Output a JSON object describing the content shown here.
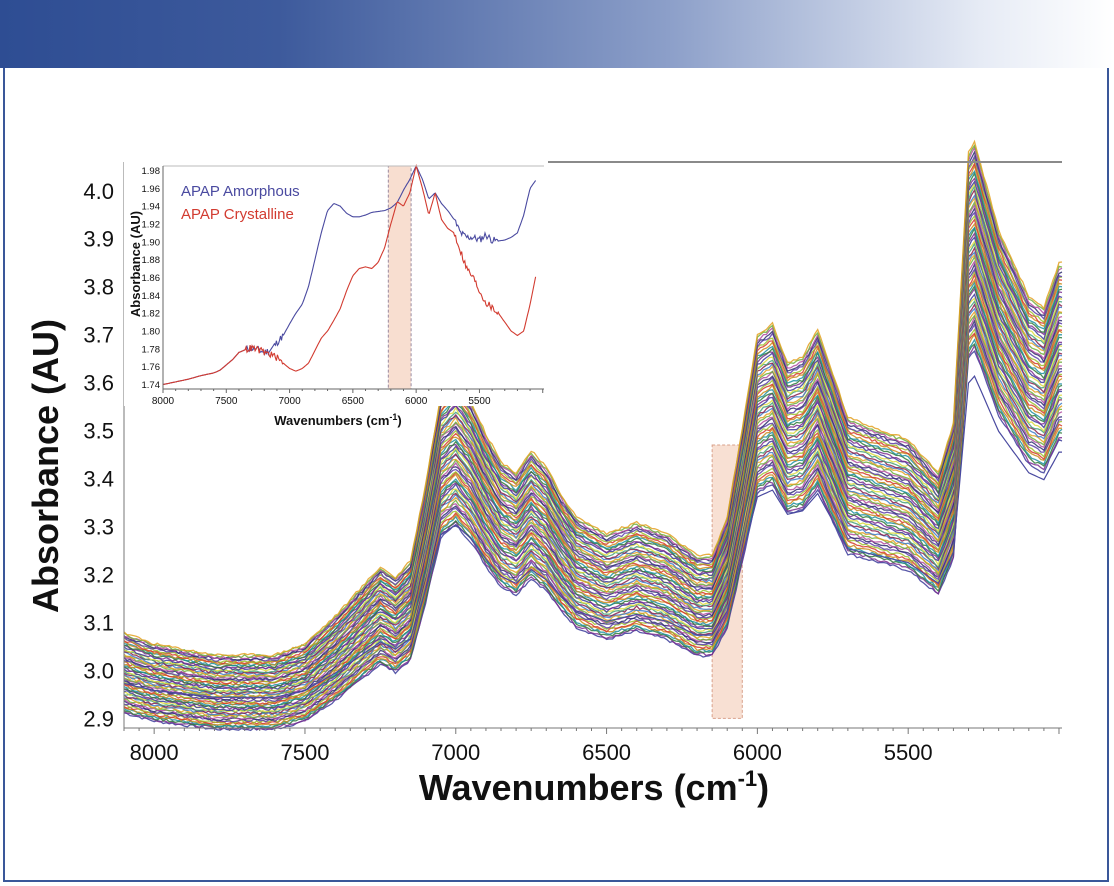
{
  "chart_data": [
    {
      "id": "main",
      "type": "line",
      "description_kind": "overlaid NIR spectra (many series)",
      "xlabel": "Wavenumbers (cm",
      "xlabel_sup": "-1",
      "xlabel_close": ")",
      "ylabel": "Absorbance (AU)",
      "xlim": [
        8100,
        4990
      ],
      "ylim": [
        2.88,
        4.06
      ],
      "x_ticks": [
        8000,
        7500,
        7000,
        6500,
        6000,
        5500
      ],
      "x_tick_labels": [
        "8000",
        "7500",
        "7000",
        "6500",
        "6000",
        "5500"
      ],
      "y_ticks": [
        2.9,
        3.0,
        3.1,
        3.2,
        3.3,
        3.4,
        3.5,
        3.6,
        3.7,
        3.8,
        3.9,
        4.0
      ],
      "y_tick_labels": [
        "2.9",
        "3.0",
        "3.1",
        "3.2",
        "3.3",
        "3.4",
        "3.5",
        "3.6",
        "3.7",
        "3.8",
        "3.9",
        "4.0"
      ],
      "highlight_region": {
        "x": [
          6150,
          6050
        ],
        "y": [
          2.9,
          3.47
        ]
      },
      "reference_spectrum": {
        "x": [
          8100,
          8000,
          7800,
          7600,
          7500,
          7400,
          7300,
          7250,
          7200,
          7150,
          7100,
          7050,
          7000,
          6950,
          6900,
          6850,
          6800,
          6750,
          6700,
          6650,
          6600,
          6500,
          6400,
          6300,
          6200,
          6150,
          6100,
          6050,
          6000,
          5950,
          5900,
          5850,
          5800,
          5750,
          5700,
          5600,
          5500,
          5450,
          5400,
          5350,
          5300,
          5280,
          5250,
          5200,
          5150,
          5100,
          5050,
          5000
        ],
        "y": [
          2.99,
          2.97,
          2.95,
          2.95,
          2.97,
          3.02,
          3.08,
          3.11,
          3.09,
          3.12,
          3.26,
          3.42,
          3.45,
          3.41,
          3.35,
          3.3,
          3.28,
          3.32,
          3.29,
          3.24,
          3.2,
          3.17,
          3.19,
          3.17,
          3.13,
          3.13,
          3.2,
          3.36,
          3.53,
          3.55,
          3.48,
          3.49,
          3.54,
          3.46,
          3.38,
          3.36,
          3.34,
          3.31,
          3.28,
          3.37,
          3.86,
          3.88,
          3.82,
          3.72,
          3.66,
          3.6,
          3.58,
          3.66
        ]
      },
      "series_count": 60,
      "series_spread": [
        -0.08,
        0.09
      ],
      "series_colors": [
        "#3b3b9a",
        "#7a2b8f",
        "#2f7a3a",
        "#1c8fa0",
        "#c98a1a",
        "#d63a2a",
        "#9bbf2a",
        "#5a3ca8",
        "#2e2e6e",
        "#b04aa0",
        "#6fae3a",
        "#e3a020",
        "#3e7cc8",
        "#8a1f4a",
        "#44a07a",
        "#dcdc3c"
      ]
    },
    {
      "id": "inset",
      "type": "line",
      "xlabel": "Wavenumbers (cm",
      "xlabel_sup": "-1",
      "xlabel_close": ")",
      "ylabel": "Absorbance (AU)",
      "xlim": [
        8000,
        4990
      ],
      "ylim": [
        1.735,
        1.985
      ],
      "x_ticks": [
        8000,
        7500,
        7000,
        6500,
        6000,
        5500
      ],
      "x_tick_labels": [
        "8000",
        "7500",
        "7000",
        "6500",
        "6000",
        "5500"
      ],
      "y_ticks": [
        1.74,
        1.76,
        1.78,
        1.8,
        1.82,
        1.84,
        1.86,
        1.88,
        1.9,
        1.92,
        1.94,
        1.96,
        1.98
      ],
      "y_tick_labels": [
        "1.74",
        "1.76",
        "1.78",
        "1.80",
        "1.82",
        "1.84",
        "1.86",
        "1.88",
        "1.90",
        "1.92",
        "1.94",
        "1.96",
        "1.98"
      ],
      "highlight_region": {
        "x": [
          6220,
          6040
        ],
        "y": [
          1.735,
          1.985
        ]
      },
      "series": [
        {
          "name": "APAP Amorphous",
          "color": "#4a4aa0",
          "x": [
            8000,
            7900,
            7800,
            7700,
            7600,
            7550,
            7500,
            7450,
            7400,
            7350,
            7300,
            7250,
            7200,
            7150,
            7100,
            7050,
            7000,
            6950,
            6900,
            6850,
            6800,
            6750,
            6700,
            6650,
            6600,
            6550,
            6500,
            6450,
            6400,
            6350,
            6300,
            6250,
            6200,
            6150,
            6100,
            6050,
            6000,
            5950,
            5900,
            5850,
            5800,
            5750,
            5700,
            5650,
            5600,
            5550,
            5500,
            5450,
            5400,
            5350,
            5300,
            5250,
            5200,
            5150,
            5100,
            5050
          ],
          "y": [
            1.74,
            1.743,
            1.746,
            1.75,
            1.753,
            1.756,
            1.762,
            1.768,
            1.776,
            1.779,
            1.781,
            1.779,
            1.776,
            1.779,
            1.787,
            1.795,
            1.808,
            1.82,
            1.83,
            1.85,
            1.88,
            1.91,
            1.935,
            1.943,
            1.94,
            1.932,
            1.928,
            1.928,
            1.93,
            1.933,
            1.934,
            1.935,
            1.938,
            1.944,
            1.958,
            1.97,
            1.985,
            1.97,
            1.948,
            1.955,
            1.943,
            1.935,
            1.925,
            1.91,
            1.905,
            1.905,
            1.902,
            1.908,
            1.902,
            1.901,
            1.902,
            1.905,
            1.91,
            1.93,
            1.96,
            1.97
          ]
        },
        {
          "name": "APAP Crystalline",
          "color": "#d23b30",
          "x": [
            8000,
            7900,
            7800,
            7700,
            7600,
            7550,
            7500,
            7450,
            7400,
            7350,
            7300,
            7250,
            7200,
            7150,
            7100,
            7050,
            7000,
            6950,
            6900,
            6850,
            6800,
            6750,
            6700,
            6650,
            6600,
            6550,
            6500,
            6450,
            6400,
            6350,
            6300,
            6250,
            6200,
            6150,
            6100,
            6050,
            6000,
            5950,
            5900,
            5850,
            5800,
            5750,
            5700,
            5650,
            5600,
            5550,
            5500,
            5450,
            5400,
            5350,
            5300,
            5250,
            5200,
            5150,
            5100,
            5050
          ],
          "y": [
            1.74,
            1.743,
            1.746,
            1.75,
            1.753,
            1.756,
            1.762,
            1.768,
            1.776,
            1.779,
            1.781,
            1.779,
            1.776,
            1.774,
            1.77,
            1.764,
            1.758,
            1.755,
            1.758,
            1.764,
            1.778,
            1.792,
            1.8,
            1.812,
            1.825,
            1.845,
            1.862,
            1.87,
            1.872,
            1.87,
            1.877,
            1.893,
            1.92,
            1.945,
            1.94,
            1.955,
            1.985,
            1.96,
            1.93,
            1.955,
            1.925,
            1.915,
            1.91,
            1.89,
            1.87,
            1.86,
            1.845,
            1.832,
            1.826,
            1.82,
            1.81,
            1.8,
            1.795,
            1.8,
            1.83,
            1.865
          ]
        }
      ]
    }
  ]
}
